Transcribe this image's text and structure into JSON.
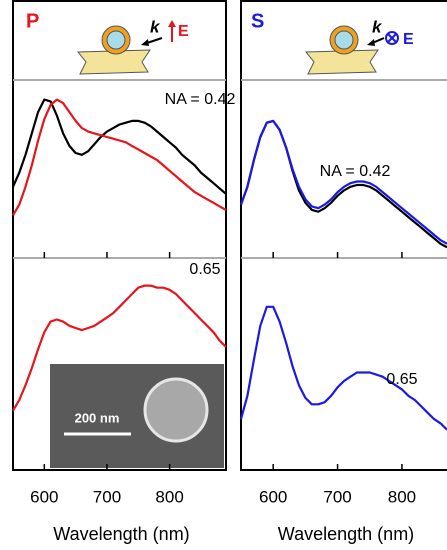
{
  "panels": [
    {
      "label": "P",
      "k": "k",
      "E": "E"
    },
    {
      "label": "S",
      "k": "k",
      "E": "E"
    }
  ],
  "scale_bar": "200 nm",
  "chart_data": [
    {
      "type": "line",
      "annotation": "NA = 0.42",
      "xlim": [
        550,
        890
      ],
      "ylim": [
        0,
        1
      ],
      "xticks": [
        600,
        700,
        800
      ],
      "x": [
        550,
        560,
        570,
        580,
        590,
        600,
        610,
        620,
        630,
        640,
        650,
        660,
        670,
        680,
        690,
        700,
        710,
        720,
        730,
        740,
        750,
        760,
        770,
        780,
        790,
        800,
        810,
        820,
        830,
        840,
        850,
        860,
        870,
        880,
        890
      ],
      "series": [
        {
          "color": "#000000",
          "values": [
            0.4,
            0.48,
            0.58,
            0.7,
            0.82,
            0.89,
            0.88,
            0.8,
            0.7,
            0.63,
            0.59,
            0.58,
            0.6,
            0.64,
            0.68,
            0.71,
            0.73,
            0.75,
            0.76,
            0.77,
            0.77,
            0.76,
            0.74,
            0.71,
            0.68,
            0.65,
            0.62,
            0.58,
            0.55,
            0.52,
            0.48,
            0.45,
            0.42,
            0.39,
            0.36
          ]
        },
        {
          "color": "#e8141b",
          "values": [
            0.24,
            0.3,
            0.4,
            0.52,
            0.66,
            0.78,
            0.86,
            0.89,
            0.87,
            0.82,
            0.77,
            0.73,
            0.71,
            0.7,
            0.69,
            0.68,
            0.67,
            0.66,
            0.65,
            0.63,
            0.61,
            0.59,
            0.57,
            0.55,
            0.52,
            0.49,
            0.46,
            0.43,
            0.4,
            0.37,
            0.35,
            0.33,
            0.31,
            0.29,
            0.27
          ]
        }
      ]
    },
    {
      "type": "line",
      "annotation": "0.65",
      "xlabel": "Wavelength (nm)",
      "xlim": [
        550,
        890
      ],
      "ylim": [
        0,
        1
      ],
      "xticks": [
        600,
        700,
        800
      ],
      "x": [
        550,
        560,
        570,
        580,
        590,
        600,
        610,
        620,
        630,
        640,
        650,
        660,
        670,
        680,
        690,
        700,
        710,
        720,
        730,
        740,
        750,
        760,
        770,
        780,
        790,
        800,
        810,
        820,
        830,
        840,
        850,
        860,
        870,
        880,
        890
      ],
      "series": [
        {
          "color": "#e8141b",
          "values": [
            0.28,
            0.33,
            0.4,
            0.48,
            0.57,
            0.65,
            0.7,
            0.71,
            0.7,
            0.68,
            0.67,
            0.66,
            0.67,
            0.68,
            0.7,
            0.72,
            0.74,
            0.77,
            0.8,
            0.83,
            0.86,
            0.87,
            0.87,
            0.86,
            0.86,
            0.85,
            0.83,
            0.8,
            0.77,
            0.74,
            0.71,
            0.68,
            0.65,
            0.61,
            0.58
          ]
        }
      ]
    },
    {
      "type": "line",
      "annotation": "NA = 0.42",
      "xlim": [
        550,
        870
      ],
      "ylim": [
        0,
        1
      ],
      "xticks": [
        600,
        700,
        800
      ],
      "x": [
        550,
        560,
        570,
        580,
        590,
        600,
        610,
        620,
        630,
        640,
        650,
        660,
        670,
        680,
        690,
        700,
        710,
        720,
        730,
        740,
        750,
        760,
        770,
        780,
        790,
        800,
        810,
        820,
        830,
        840,
        850,
        860,
        870
      ],
      "series": [
        {
          "color": "#000000",
          "values": [
            0.3,
            0.4,
            0.55,
            0.68,
            0.76,
            0.77,
            0.72,
            0.62,
            0.49,
            0.38,
            0.31,
            0.27,
            0.26,
            0.28,
            0.31,
            0.35,
            0.38,
            0.4,
            0.41,
            0.41,
            0.4,
            0.38,
            0.35,
            0.32,
            0.29,
            0.26,
            0.23,
            0.2,
            0.17,
            0.14,
            0.11,
            0.08,
            0.06
          ]
        },
        {
          "color": "#1a1ae6",
          "values": [
            0.3,
            0.4,
            0.55,
            0.68,
            0.76,
            0.77,
            0.72,
            0.62,
            0.5,
            0.4,
            0.33,
            0.29,
            0.28,
            0.3,
            0.33,
            0.37,
            0.4,
            0.42,
            0.43,
            0.43,
            0.42,
            0.4,
            0.37,
            0.34,
            0.31,
            0.28,
            0.25,
            0.22,
            0.19,
            0.16,
            0.13,
            0.1,
            0.08
          ]
        }
      ]
    },
    {
      "type": "line",
      "annotation": "0.65",
      "xlabel": "Wavelength (nm)",
      "xlim": [
        550,
        870
      ],
      "ylim": [
        0,
        1
      ],
      "xticks": [
        600,
        700,
        800
      ],
      "x": [
        550,
        560,
        570,
        580,
        590,
        600,
        610,
        620,
        630,
        640,
        650,
        660,
        670,
        680,
        690,
        700,
        710,
        720,
        730,
        740,
        750,
        760,
        770,
        780,
        790,
        800,
        810,
        820,
        830,
        840,
        850,
        860,
        870
      ],
      "series": [
        {
          "color": "#1a1ae6",
          "values": [
            0.24,
            0.35,
            0.52,
            0.68,
            0.77,
            0.77,
            0.7,
            0.6,
            0.49,
            0.4,
            0.34,
            0.31,
            0.31,
            0.32,
            0.35,
            0.39,
            0.42,
            0.44,
            0.46,
            0.46,
            0.46,
            0.45,
            0.44,
            0.42,
            0.4,
            0.38,
            0.35,
            0.33,
            0.3,
            0.27,
            0.24,
            0.22,
            0.19
          ]
        }
      ]
    }
  ]
}
